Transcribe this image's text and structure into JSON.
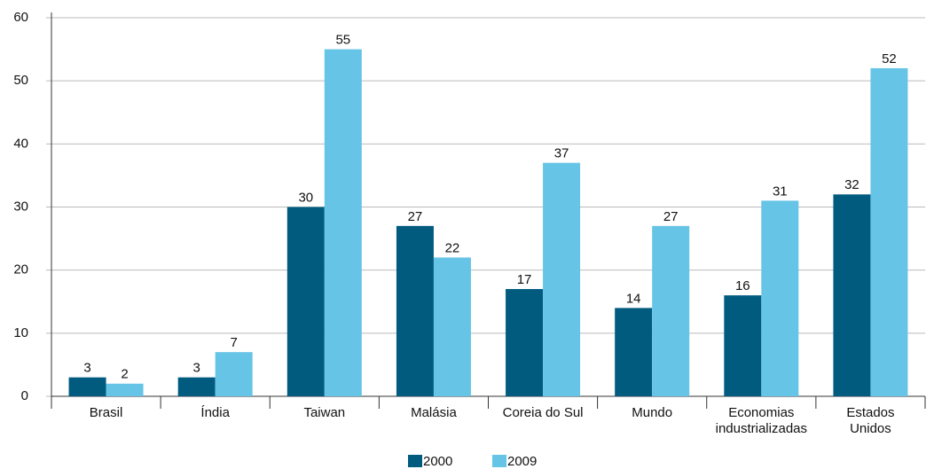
{
  "chart_data": {
    "type": "bar",
    "categories": [
      "Brasil",
      "Índia",
      "Taiwan",
      "Malásia",
      "Coreia do Sul",
      "Mundo",
      "Economias\nindustrializadas",
      "Estados\nUnidos"
    ],
    "series": [
      {
        "name": "2000",
        "color": "#005b7f",
        "values": [
          3,
          3,
          30,
          27,
          17,
          14,
          16,
          32
        ]
      },
      {
        "name": "2009",
        "color": "#66c4e6",
        "values": [
          2,
          7,
          55,
          22,
          37,
          27,
          31,
          52
        ]
      }
    ],
    "ylim": [
      0,
      60
    ],
    "yticks": [
      0,
      10,
      20,
      30,
      40,
      50,
      60
    ],
    "grid": true,
    "legend": "bottom"
  }
}
